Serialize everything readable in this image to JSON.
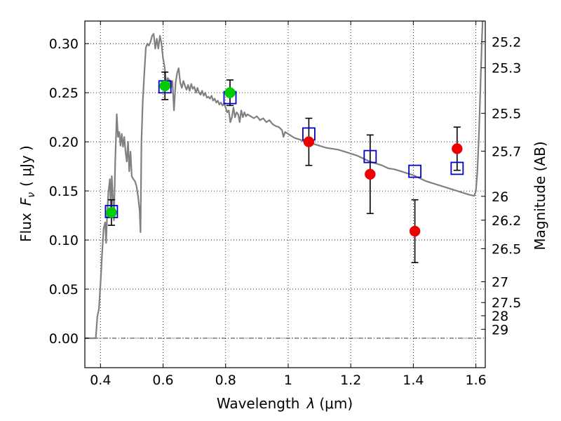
{
  "chart_data": {
    "type": "scatter",
    "xlabel": "Wavelength",
    "xlabel_symbol": "λ",
    "xlabel_unit": "(μm)",
    "ylabel": "Flux",
    "ylabel_symbol": "F",
    "ylabel_symbol_sub": "ν",
    "ylabel_unit": "( μJy )",
    "y2label": "Magnitude (AB)",
    "xlim": [
      0.35,
      1.63
    ],
    "ylim": [
      -0.03,
      0.323
    ],
    "grid": true,
    "zero_line": true,
    "x_ticks": [
      {
        "value": 0.4,
        "label": "0.4"
      },
      {
        "value": 0.6,
        "label": "0.6"
      },
      {
        "value": 0.8,
        "label": "0.8"
      },
      {
        "value": 1.0,
        "label": "1"
      },
      {
        "value": 1.2,
        "label": "1.2"
      },
      {
        "value": 1.4,
        "label": "1.4"
      },
      {
        "value": 1.6,
        "label": "1.6"
      }
    ],
    "y_ticks": [
      {
        "value": 0.0,
        "label": "0.00"
      },
      {
        "value": 0.05,
        "label": "0.05"
      },
      {
        "value": 0.1,
        "label": "0.10"
      },
      {
        "value": 0.15,
        "label": "0.15"
      },
      {
        "value": 0.2,
        "label": "0.20"
      },
      {
        "value": 0.25,
        "label": "0.25"
      },
      {
        "value": 0.3,
        "label": "0.30"
      }
    ],
    "magnitude_ticks": [
      {
        "label": "25.2",
        "flux": 0.3019
      },
      {
        "label": "25.3",
        "flux": 0.2754
      },
      {
        "label": "25.5",
        "flux": 0.2291
      },
      {
        "label": "25.7",
        "flux": 0.1905
      },
      {
        "label": "26",
        "flux": 0.1445
      },
      {
        "label": "26.2",
        "flux": 0.1202
      },
      {
        "label": "26.5",
        "flux": 0.0912
      },
      {
        "label": "27",
        "flux": 0.0575
      },
      {
        "label": "27.5",
        "flux": 0.0363
      },
      {
        "label": "28",
        "flux": 0.0229
      },
      {
        "label": "29",
        "flux": 0.0091
      }
    ],
    "model_spectrum": {
      "color": "#808080",
      "points": [
        [
          0.35,
          0.0
        ],
        [
          0.385,
          0.0
        ],
        [
          0.39,
          0.022
        ],
        [
          0.395,
          0.03
        ],
        [
          0.4,
          0.055
        ],
        [
          0.405,
          0.085
        ],
        [
          0.41,
          0.112
        ],
        [
          0.415,
          0.118
        ],
        [
          0.418,
          0.097
        ],
        [
          0.421,
          0.124
        ],
        [
          0.425,
          0.148
        ],
        [
          0.43,
          0.162
        ],
        [
          0.433,
          0.13
        ],
        [
          0.436,
          0.165
        ],
        [
          0.44,
          0.142
        ],
        [
          0.443,
          0.12
        ],
        [
          0.447,
          0.18
        ],
        [
          0.452,
          0.228
        ],
        [
          0.456,
          0.205
        ],
        [
          0.46,
          0.21
        ],
        [
          0.464,
          0.196
        ],
        [
          0.468,
          0.208
        ],
        [
          0.472,
          0.195
        ],
        [
          0.476,
          0.205
        ],
        [
          0.48,
          0.19
        ],
        [
          0.484,
          0.18
        ],
        [
          0.488,
          0.2
        ],
        [
          0.492,
          0.17
        ],
        [
          0.496,
          0.19
        ],
        [
          0.5,
          0.165
        ],
        [
          0.505,
          0.162
        ],
        [
          0.51,
          0.16
        ],
        [
          0.515,
          0.155
        ],
        [
          0.52,
          0.145
        ],
        [
          0.525,
          0.13
        ],
        [
          0.528,
          0.108
        ],
        [
          0.531,
          0.2
        ],
        [
          0.535,
          0.24
        ],
        [
          0.54,
          0.27
        ],
        [
          0.545,
          0.296
        ],
        [
          0.55,
          0.3
        ],
        [
          0.555,
          0.298
        ],
        [
          0.56,
          0.302
        ],
        [
          0.565,
          0.308
        ],
        [
          0.57,
          0.31
        ],
        [
          0.575,
          0.295
        ],
        [
          0.58,
          0.305
        ],
        [
          0.585,
          0.295
        ],
        [
          0.59,
          0.308
        ],
        [
          0.595,
          0.3
        ],
        [
          0.6,
          0.285
        ],
        [
          0.605,
          0.276
        ],
        [
          0.61,
          0.26
        ],
        [
          0.615,
          0.265
        ],
        [
          0.62,
          0.263
        ],
        [
          0.625,
          0.255
        ],
        [
          0.63,
          0.262
        ],
        [
          0.635,
          0.232
        ],
        [
          0.64,
          0.26
        ],
        [
          0.645,
          0.27
        ],
        [
          0.65,
          0.275
        ],
        [
          0.655,
          0.26
        ],
        [
          0.66,
          0.255
        ],
        [
          0.665,
          0.262
        ],
        [
          0.67,
          0.257
        ],
        [
          0.675,
          0.253
        ],
        [
          0.68,
          0.258
        ],
        [
          0.685,
          0.252
        ],
        [
          0.69,
          0.259
        ],
        [
          0.695,
          0.254
        ],
        [
          0.7,
          0.256
        ],
        [
          0.705,
          0.25
        ],
        [
          0.71,
          0.255
        ],
        [
          0.715,
          0.25
        ],
        [
          0.72,
          0.248
        ],
        [
          0.725,
          0.252
        ],
        [
          0.73,
          0.247
        ],
        [
          0.735,
          0.25
        ],
        [
          0.74,
          0.245
        ],
        [
          0.745,
          0.246
        ],
        [
          0.75,
          0.244
        ],
        [
          0.755,
          0.247
        ],
        [
          0.76,
          0.242
        ],
        [
          0.765,
          0.244
        ],
        [
          0.77,
          0.24
        ],
        [
          0.775,
          0.242
        ],
        [
          0.78,
          0.238
        ],
        [
          0.785,
          0.24
        ],
        [
          0.79,
          0.237
        ],
        [
          0.795,
          0.239
        ],
        [
          0.8,
          0.235
        ],
        [
          0.805,
          0.23
        ],
        [
          0.81,
          0.232
        ],
        [
          0.815,
          0.22
        ],
        [
          0.82,
          0.225
        ],
        [
          0.825,
          0.235
        ],
        [
          0.83,
          0.225
        ],
        [
          0.835,
          0.23
        ],
        [
          0.84,
          0.228
        ],
        [
          0.845,
          0.22
        ],
        [
          0.85,
          0.232
        ],
        [
          0.855,
          0.225
        ],
        [
          0.86,
          0.23
        ],
        [
          0.865,
          0.226
        ],
        [
          0.87,
          0.228
        ],
        [
          0.88,
          0.226
        ],
        [
          0.89,
          0.224
        ],
        [
          0.9,
          0.226
        ],
        [
          0.91,
          0.222
        ],
        [
          0.92,
          0.224
        ],
        [
          0.93,
          0.22
        ],
        [
          0.94,
          0.222
        ],
        [
          0.95,
          0.218
        ],
        [
          0.96,
          0.216
        ],
        [
          0.97,
          0.215
        ],
        [
          0.98,
          0.212
        ],
        [
          0.985,
          0.205
        ],
        [
          0.99,
          0.21
        ],
        [
          1.0,
          0.208
        ],
        [
          1.01,
          0.206
        ],
        [
          1.02,
          0.204
        ],
        [
          1.03,
          0.203
        ],
        [
          1.04,
          0.202
        ],
        [
          1.05,
          0.2
        ],
        [
          1.06,
          0.2
        ],
        [
          1.08,
          0.198
        ],
        [
          1.1,
          0.196
        ],
        [
          1.12,
          0.194
        ],
        [
          1.14,
          0.193
        ],
        [
          1.16,
          0.192
        ],
        [
          1.18,
          0.19
        ],
        [
          1.2,
          0.188
        ],
        [
          1.22,
          0.186
        ],
        [
          1.24,
          0.183
        ],
        [
          1.26,
          0.18
        ],
        [
          1.28,
          0.178
        ],
        [
          1.3,
          0.176
        ],
        [
          1.32,
          0.173
        ],
        [
          1.34,
          0.172
        ],
        [
          1.36,
          0.17
        ],
        [
          1.38,
          0.168
        ],
        [
          1.4,
          0.166
        ],
        [
          1.42,
          0.163
        ],
        [
          1.44,
          0.16
        ],
        [
          1.46,
          0.158
        ],
        [
          1.48,
          0.156
        ],
        [
          1.5,
          0.154
        ],
        [
          1.52,
          0.152
        ],
        [
          1.54,
          0.15
        ],
        [
          1.56,
          0.148
        ],
        [
          1.58,
          0.146
        ],
        [
          1.595,
          0.145
        ],
        [
          1.6,
          0.15
        ],
        [
          1.605,
          0.17
        ],
        [
          1.61,
          0.21
        ],
        [
          1.615,
          0.26
        ],
        [
          1.62,
          0.31
        ],
        [
          1.625,
          0.35
        ]
      ]
    },
    "series": [
      {
        "marker": "open-square",
        "color": "#0000cc",
        "points": [
          {
            "x": 0.435,
            "y": 0.129
          },
          {
            "x": 0.606,
            "y": 0.256
          },
          {
            "x": 0.814,
            "y": 0.245
          },
          {
            "x": 1.066,
            "y": 0.208
          },
          {
            "x": 1.262,
            "y": 0.185
          },
          {
            "x": 1.405,
            "y": 0.17
          },
          {
            "x": 1.54,
            "y": 0.173
          }
        ]
      },
      {
        "marker": "filled-circle",
        "color": "#00cc00",
        "points": [
          {
            "x": 0.435,
            "y": 0.128,
            "yerr": 0.013
          },
          {
            "x": 0.606,
            "y": 0.257,
            "yerr": 0.014
          },
          {
            "x": 0.814,
            "y": 0.25,
            "yerr": 0.013
          }
        ]
      },
      {
        "marker": "filled-circle",
        "color": "#ee0000",
        "points": [
          {
            "x": 1.066,
            "y": 0.2,
            "yerr": 0.024
          },
          {
            "x": 1.262,
            "y": 0.167,
            "yerr": 0.04
          },
          {
            "x": 1.405,
            "y": 0.109,
            "yerr": 0.032
          },
          {
            "x": 1.54,
            "y": 0.193,
            "yerr": 0.022
          }
        ]
      }
    ]
  }
}
